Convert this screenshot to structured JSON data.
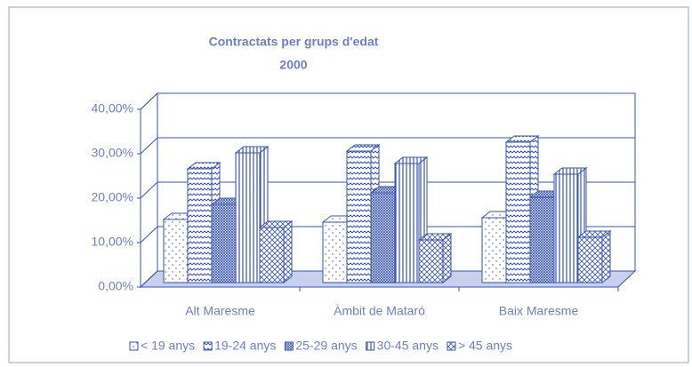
{
  "chart_data": {
    "type": "bar3d",
    "title": "Contractats per grups d'edat",
    "subtitle": "2000",
    "categories": [
      "Alt Maresme",
      "Àmbit de Mataró",
      "Baix Maresme"
    ],
    "series": [
      {
        "name": "< 19 anys",
        "color": "#3a55b4",
        "values": [
          14.2,
          13.6,
          14.6
        ]
      },
      {
        "name": "19-24 anys",
        "color": "#3a55b4",
        "values": [
          25.6,
          29.6,
          31.6
        ]
      },
      {
        "name": "25-29 anys",
        "color": "#3a55b4",
        "values": [
          17.6,
          20.2,
          19.2
        ]
      },
      {
        "name": "30-45 anys",
        "color": "#3a55b4",
        "values": [
          29.2,
          26.8,
          24.4
        ]
      },
      {
        "name": "> 45 anys",
        "color": "#3a55b4",
        "values": [
          12.4,
          9.6,
          10.2
        ]
      }
    ],
    "ylim": [
      0,
      40
    ],
    "yticks": [
      {
        "value": 0,
        "label": "0,00%"
      },
      {
        "value": 10,
        "label": "10,00%"
      },
      {
        "value": 20,
        "label": "20,00%"
      },
      {
        "value": 30,
        "label": "30,00%"
      },
      {
        "value": 40,
        "label": "40,00%"
      }
    ],
    "grid": true,
    "legend": "bottom"
  }
}
